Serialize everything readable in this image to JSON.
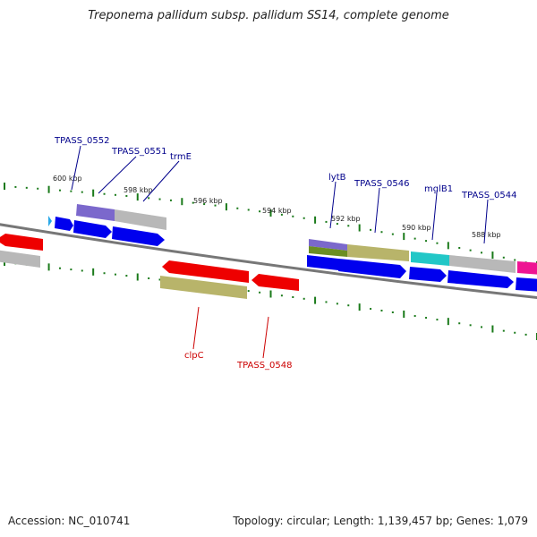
{
  "title": "Treponema pallidum subsp. pallidum SS14, complete genome",
  "footer": {
    "accession": "Accession: NC_010741",
    "summary": "Topology: circular; Length: 1,139,457 bp; Genes: 1,079"
  },
  "colors": {
    "backbone": "#777777",
    "ticks": "#1a7a1a",
    "forward_label": "#00008b",
    "reverse_label": "#cc0000",
    "blue": "#0000ee",
    "red": "#ee0000",
    "gray": "#b8b8b8",
    "slate": "#7b68cc",
    "khaki": "#b8b46a",
    "olive": "#6b8e23",
    "cyan": "#22c7c7",
    "magenta": "#ee1493",
    "skyblue": "#2aa8e8"
  },
  "tick_labels": [
    "600 kbp",
    "598 kbp",
    "596 kbp",
    "594 kbp",
    "592 kbp",
    "590 kbp",
    "588 kbp"
  ],
  "forward_gene_labels": [
    "TPASS_0552",
    "TPASS_0551",
    "trmE",
    "lytB",
    "TPASS_0546",
    "mglB1",
    "TPASS_0544"
  ],
  "reverse_gene_labels": [
    "clpC",
    "TPASS_0548"
  ]
}
